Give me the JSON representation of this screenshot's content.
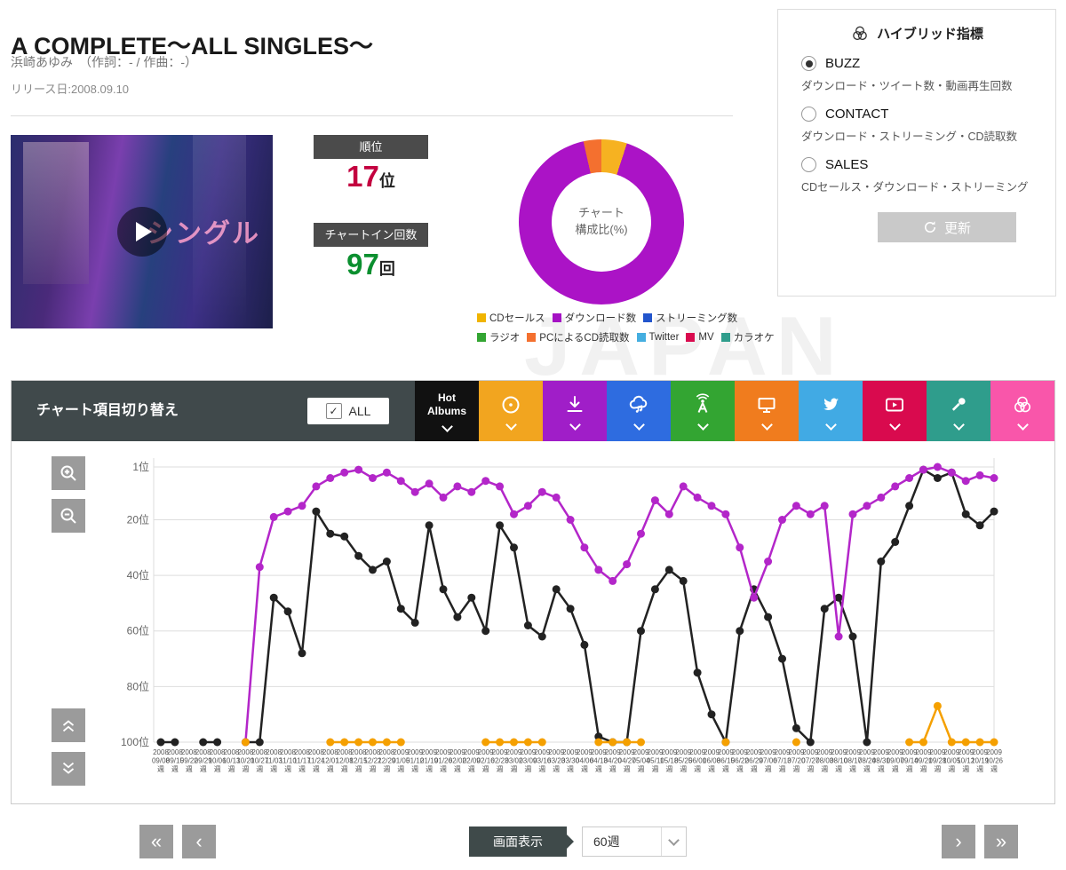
{
  "page": {
    "title": "A COMPLETE～ALL SINGLES～",
    "artist_line": "浜崎あゆみ　（作詞：- / 作曲：-）",
    "release": "リリース日:2008.09.10",
    "watermark": "JAPAN"
  },
  "artwork": {
    "overlay_text": "シングル"
  },
  "hybrid_panel": {
    "title": "ハイブリッド指標",
    "options": [
      {
        "label": "BUZZ",
        "desc": "ダウンロード・ツイート数・動画再生回数",
        "selected": true
      },
      {
        "label": "CONTACT",
        "desc": "ダウンロード・ストリーミング・CD読取数",
        "selected": false
      },
      {
        "label": "SALES",
        "desc": "CDセールス・ダウンロード・ストリーミング",
        "selected": false
      }
    ],
    "update_label": "更新"
  },
  "stats": {
    "rank_label": "順位",
    "rank_value": "17",
    "rank_unit": "位",
    "rank_color": "#c3003f",
    "chartin_label": "チャートイン回数",
    "chartin_value": "97",
    "chartin_unit": "回",
    "chartin_color": "#0b8f2f"
  },
  "donut": {
    "center_line1": "チャート",
    "center_line2": "構成比(%)",
    "slices": [
      {
        "label": "CDセールス",
        "value": 5,
        "color": "#f6b221"
      },
      {
        "label": "ダウンロード数",
        "value": 91.5,
        "color": "#ab13c6"
      },
      {
        "label": "PCによるCD読取数",
        "value": 3.5,
        "color": "#f4702f"
      }
    ]
  },
  "legend": {
    "rows": [
      [
        {
          "label": "CDセールス",
          "color": "#f0b400"
        },
        {
          "label": "ダウンロード数",
          "color": "#a512c4"
        },
        {
          "label": "ストリーミング数",
          "color": "#2255cc"
        }
      ],
      [
        {
          "label": "ラジオ",
          "color": "#33a532"
        },
        {
          "label": "PCによるCD読取数",
          "color": "#f4702f"
        },
        {
          "label": "Twitter",
          "color": "#45aee0"
        },
        {
          "label": "MV",
          "color": "#d90a4e"
        },
        {
          "label": "カラオケ",
          "color": "#2f9d8c"
        }
      ]
    ]
  },
  "chart_header": {
    "title": "チャート項目切り替え",
    "all_label": "ALL",
    "buttons": [
      {
        "name": "hot-albums",
        "label1": "Hot",
        "label2": "Albums",
        "color": "#111111"
      },
      {
        "name": "cd-sales",
        "color": "#f2a51f"
      },
      {
        "name": "download",
        "color": "#a01ec8"
      },
      {
        "name": "streaming",
        "color": "#2e6ce0"
      },
      {
        "name": "radio",
        "color": "#33a532"
      },
      {
        "name": "pc-cd-read",
        "color": "#f07c1e"
      },
      {
        "name": "twitter",
        "color": "#41aae4"
      },
      {
        "name": "mv",
        "color": "#d90a4e"
      },
      {
        "name": "karaoke",
        "color": "#2f9d8c"
      },
      {
        "name": "hybrid",
        "color": "#f956aa"
      }
    ]
  },
  "chart_data": {
    "type": "line",
    "y_inverted": true,
    "x_suffix": "週",
    "y_ticks": [
      {
        "v": 1,
        "label": "1位"
      },
      {
        "v": 20,
        "label": "20位"
      },
      {
        "v": 40,
        "label": "40位"
      },
      {
        "v": 60,
        "label": "60位"
      },
      {
        "v": 80,
        "label": "80位"
      },
      {
        "v": 100,
        "label": "100位"
      }
    ],
    "x_labels": [
      [
        "2008",
        "09/08"
      ],
      [
        "2008",
        "09/15"
      ],
      [
        "2008",
        "09/22"
      ],
      [
        "2008",
        "09/29"
      ],
      [
        "2008",
        "10/06"
      ],
      [
        "2008",
        "10/13"
      ],
      [
        "2008",
        "10/20"
      ],
      [
        "2008",
        "10/27"
      ],
      [
        "2008",
        "11/03"
      ],
      [
        "2008",
        "11/10"
      ],
      [
        "2008",
        "11/17"
      ],
      [
        "2008",
        "11/24"
      ],
      [
        "2008",
        "12/01"
      ],
      [
        "2008",
        "12/08"
      ],
      [
        "2008",
        "12/15"
      ],
      [
        "2008",
        "12/22"
      ],
      [
        "2008",
        "12/29"
      ],
      [
        "2009",
        "01/05"
      ],
      [
        "2009",
        "01/12"
      ],
      [
        "2009",
        "01/19"
      ],
      [
        "2009",
        "01/26"
      ],
      [
        "2009",
        "02/02"
      ],
      [
        "2009",
        "02/09"
      ],
      [
        "2009",
        "02/16"
      ],
      [
        "2009",
        "02/23"
      ],
      [
        "2009",
        "03/02"
      ],
      [
        "2009",
        "03/09"
      ],
      [
        "2009",
        "03/16"
      ],
      [
        "2009",
        "03/23"
      ],
      [
        "2009",
        "03/30"
      ],
      [
        "2009",
        "04/06"
      ],
      [
        "2009",
        "04/13"
      ],
      [
        "2009",
        "04/20"
      ],
      [
        "2009",
        "04/27"
      ],
      [
        "2009",
        "05/04"
      ],
      [
        "2009",
        "05/11"
      ],
      [
        "2009",
        "05/18"
      ],
      [
        "2009",
        "05/25"
      ],
      [
        "2009",
        "06/01"
      ],
      [
        "2009",
        "06/08"
      ],
      [
        "2009",
        "06/15"
      ],
      [
        "2009",
        "06/22"
      ],
      [
        "2009",
        "06/29"
      ],
      [
        "2009",
        "07/06"
      ],
      [
        "2009",
        "07/13"
      ],
      [
        "2009",
        "07/20"
      ],
      [
        "2009",
        "07/27"
      ],
      [
        "2009",
        "08/03"
      ],
      [
        "2009",
        "08/10"
      ],
      [
        "2009",
        "08/17"
      ],
      [
        "2009",
        "08/24"
      ],
      [
        "2009",
        "08/31"
      ],
      [
        "2009",
        "09/07"
      ],
      [
        "2009",
        "09/14"
      ],
      [
        "2009",
        "09/21"
      ],
      [
        "2009",
        "09/28"
      ],
      [
        "2009",
        "10/05"
      ],
      [
        "2009",
        "10/12"
      ],
      [
        "2009",
        "10/19"
      ],
      [
        "2009",
        "10/26"
      ]
    ],
    "series": [
      {
        "name": "Hot Albums",
        "color": "#222222",
        "values": [
          100,
          100,
          null,
          100,
          100,
          null,
          100,
          100,
          48,
          53,
          68,
          17,
          25,
          26,
          33,
          38,
          35,
          52,
          57,
          22,
          45,
          55,
          48,
          60,
          22,
          30,
          58,
          62,
          45,
          52,
          65,
          98,
          100,
          100,
          60,
          45,
          38,
          42,
          75,
          90,
          100,
          60,
          45,
          55,
          70,
          95,
          100,
          52,
          48,
          62,
          100,
          35,
          28,
          15,
          2,
          5,
          3,
          18,
          22,
          17
        ]
      },
      {
        "name": "ダウンロード数",
        "color": "#b326c9",
        "values": [
          null,
          null,
          null,
          null,
          null,
          null,
          100,
          37,
          19,
          17,
          15,
          8,
          5,
          3,
          2,
          5,
          3,
          6,
          10,
          7,
          12,
          8,
          10,
          6,
          8,
          18,
          15,
          10,
          12,
          20,
          30,
          38,
          42,
          36,
          25,
          13,
          18,
          8,
          12,
          15,
          18,
          30,
          48,
          35,
          20,
          15,
          18,
          15,
          62,
          18,
          15,
          12,
          8,
          5,
          2,
          1,
          3,
          6,
          4,
          5
        ]
      },
      {
        "name": "CDセールス",
        "color": "#f5a000",
        "values": [
          null,
          null,
          null,
          null,
          null,
          null,
          100,
          null,
          null,
          null,
          null,
          null,
          100,
          100,
          100,
          100,
          100,
          100,
          null,
          null,
          null,
          null,
          null,
          100,
          100,
          100,
          100,
          100,
          null,
          null,
          null,
          100,
          100,
          100,
          100,
          null,
          null,
          null,
          null,
          null,
          100,
          null,
          null,
          null,
          null,
          100,
          null,
          null,
          null,
          null,
          null,
          null,
          null,
          100,
          100,
          87,
          100,
          100,
          100,
          100
        ]
      }
    ]
  },
  "pager": {
    "display_label": "画面表示",
    "range_value": "60週"
  }
}
